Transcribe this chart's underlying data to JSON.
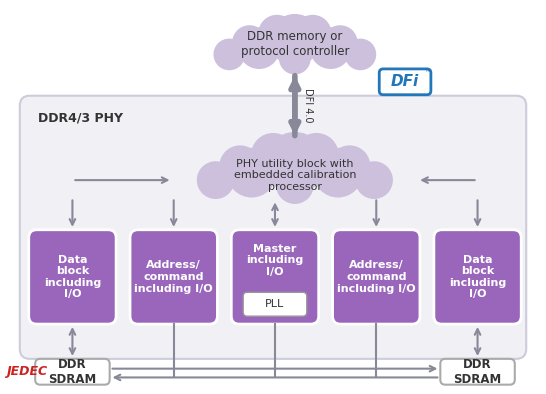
{
  "bg_color": "#ffffff",
  "phy_box_color": "#f0f0f5",
  "phy_box_edge": "#ccccdd",
  "block_fill": "#9966bb",
  "block_edge": "#ffffff",
  "cloud_fill": "#ccc0dd",
  "arrow_color": "#888899",
  "dfi_box_edge": "#2277bb",
  "dfi_text_color": "#2277bb",
  "sdram_fill": "#ffffff",
  "sdram_edge": "#aaaaaa",
  "jedec_color": "#cc2222",
  "text_dark": "#333333",
  "text_white": "#ffffff",
  "phy_label": "DDR4/3 PHY",
  "ddr_cloud_text": "DDR memory or\nprotocol controller",
  "phy_cloud_text": "PHY utility block with\nembedded calibration\nprocessor",
  "dfi_label": "DFI 4.0",
  "block_labels": [
    "Data\nblock\nincluding\nI/O",
    "Address/\ncommand\nincluding I/O",
    "Master\nincluding\nI/O",
    "Address/\ncommand\nincluding I/O",
    "Data\nblock\nincluding\nI/O"
  ],
  "sdram_left": "DDR\nSDRAM",
  "sdram_right": "DDR\nSDRAM",
  "jedec": "JEDEC"
}
